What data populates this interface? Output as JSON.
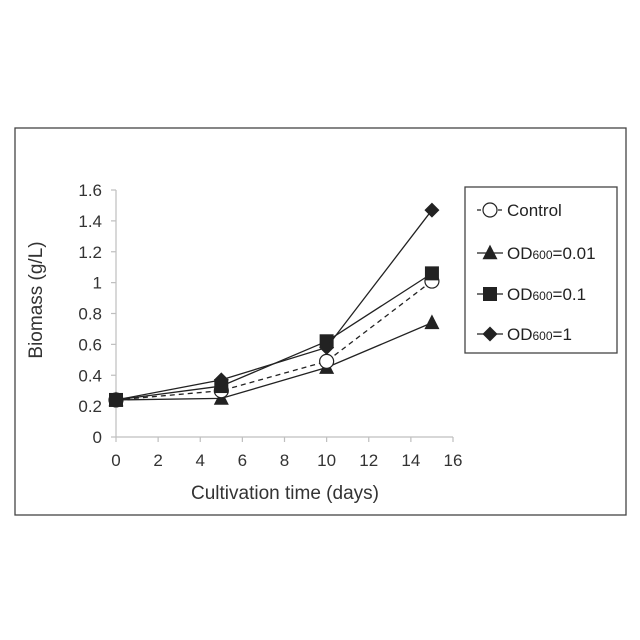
{
  "chart_data": {
    "type": "line",
    "xlabel": "Cultivation time (days)",
    "ylabel": "Biomass (g/L)",
    "xlim": [
      0,
      16
    ],
    "ylim": [
      0,
      1.6
    ],
    "x_ticks": [
      "0",
      "2",
      "4",
      "6",
      "8",
      "10",
      "12",
      "14",
      "16"
    ],
    "y_ticks": [
      "0",
      "0.2",
      "0.4",
      "0.6",
      "0.8",
      "1",
      "1.2",
      "1.4",
      "1.6"
    ],
    "grid": false,
    "legend_position": "right",
    "x": [
      0,
      5,
      10,
      15
    ],
    "series": [
      {
        "name": "Control",
        "legend_prefix": "OD",
        "legend_sub": "",
        "legend_suffix": "",
        "marker": "circle",
        "dashed": true,
        "values": [
          0.24,
          0.3,
          0.49,
          1.01
        ]
      },
      {
        "name": "OD600=0.01",
        "legend_prefix": "OD",
        "legend_sub": "600",
        "legend_suffix": "=0.01",
        "marker": "triangle",
        "dashed": false,
        "values": [
          0.24,
          0.25,
          0.45,
          0.74
        ]
      },
      {
        "name": "OD600=0.1",
        "legend_prefix": "OD",
        "legend_sub": "600",
        "legend_suffix": "=0.1",
        "marker": "square",
        "dashed": false,
        "values": [
          0.24,
          0.33,
          0.62,
          1.06
        ]
      },
      {
        "name": "OD600=1",
        "legend_prefix": "OD",
        "legend_sub": "600",
        "legend_suffix": "=1",
        "marker": "diamond",
        "dashed": false,
        "values": [
          0.24,
          0.37,
          0.58,
          1.47
        ]
      }
    ]
  }
}
